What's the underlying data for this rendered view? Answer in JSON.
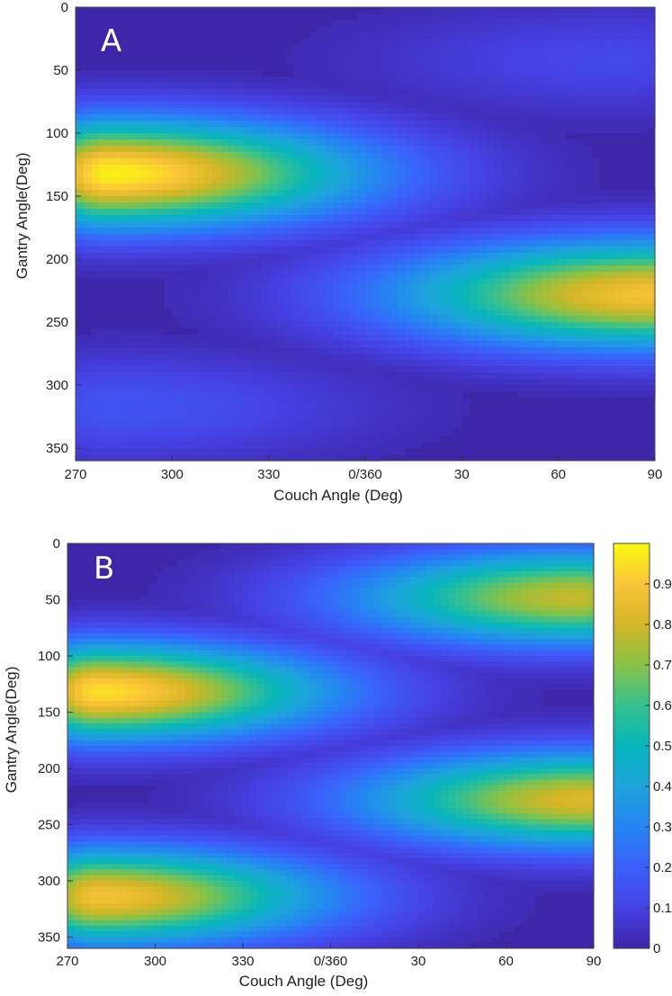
{
  "chart_data": [
    {
      "type": "heatmap",
      "panel_label": "A",
      "xlabel": "Couch Angle (Deg)",
      "ylabel": "Gantry Angle(Deg)",
      "x_ticks": [
        "270",
        "300",
        "330",
        "0/360",
        "30",
        "60",
        "90"
      ],
      "y_ticks": [
        "0",
        "50",
        "100",
        "150",
        "200",
        "250",
        "300",
        "350"
      ],
      "xlim": [
        270,
        450
      ],
      "ylim": [
        0,
        360
      ],
      "y_reversed": true,
      "colormap": "parula",
      "background_value": 0.0,
      "peaks": [
        {
          "couch": 280,
          "gantry": 132,
          "value": 0.98
        },
        {
          "couch": 88,
          "gantry": 228,
          "value": 0.88
        },
        {
          "couch": 80,
          "gantry": 42,
          "value": 0.12
        },
        {
          "couch": 280,
          "gantry": 318,
          "value": 0.16
        }
      ]
    },
    {
      "type": "heatmap",
      "panel_label": "B",
      "xlabel": "Couch Angle (Deg)",
      "ylabel": "Gantry Angle(Deg)",
      "x_ticks": [
        "270",
        "300",
        "330",
        "0/360",
        "30",
        "60",
        "90"
      ],
      "y_ticks": [
        "0",
        "50",
        "100",
        "150",
        "200",
        "250",
        "300",
        "350"
      ],
      "xlim": [
        270,
        450
      ],
      "ylim": [
        0,
        360
      ],
      "y_reversed": true,
      "colormap": "parula",
      "background_value": 0.0,
      "colorbar": {
        "ticks": [
          "0",
          "0.1",
          "0.2",
          "0.3",
          "0.4",
          "0.5",
          "0.6",
          "0.7",
          "0.8",
          "0.9"
        ],
        "range": [
          0,
          1
        ]
      },
      "peaks": [
        {
          "couch": 280,
          "gantry": 132,
          "value": 0.95
        },
        {
          "couch": 85,
          "gantry": 48,
          "value": 0.78
        },
        {
          "couch": 88,
          "gantry": 228,
          "value": 0.82
        },
        {
          "couch": 280,
          "gantry": 314,
          "value": 0.88
        }
      ]
    }
  ],
  "colors": {
    "background": "#3e26a8",
    "parula": [
      "#3e26a8",
      "#4641e4",
      "#3b60fb",
      "#2585f3",
      "#1ea3dc",
      "#07b5bd",
      "#36c18f",
      "#88c246",
      "#d3b626",
      "#fbc43a",
      "#f9fb0e"
    ]
  }
}
